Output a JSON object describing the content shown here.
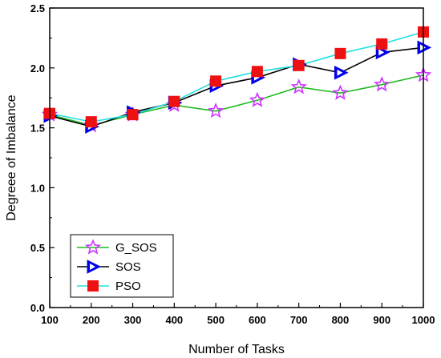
{
  "chart_data": {
    "type": "line",
    "xlabel": "Number of Tasks",
    "ylabel": "Degreee of Imbalance",
    "xlim": [
      100,
      1000
    ],
    "ylim": [
      0.0,
      2.5
    ],
    "x": [
      100,
      200,
      300,
      400,
      500,
      600,
      700,
      800,
      900,
      1000
    ],
    "x_ticks": [
      "100",
      "200",
      "300",
      "400",
      "500",
      "600",
      "700",
      "800",
      "900",
      "1000"
    ],
    "y_ticks": [
      "0.0",
      "0.5",
      "1.0",
      "1.5",
      "2.0",
      "2.5"
    ],
    "legend_position": "bottom-left",
    "grid": false,
    "series": [
      {
        "name": "G_SOS",
        "line_color": "#22bb22",
        "marker": "star",
        "marker_color": "#cc33ff",
        "values": [
          1.61,
          1.52,
          1.61,
          1.69,
          1.64,
          1.73,
          1.84,
          1.79,
          1.86,
          1.94
        ]
      },
      {
        "name": "SOS",
        "line_color": "#000000",
        "marker": "triangle-right",
        "marker_color": "#0000ee",
        "values": [
          1.6,
          1.51,
          1.63,
          1.71,
          1.85,
          1.92,
          2.03,
          1.96,
          2.13,
          2.17
        ]
      },
      {
        "name": "PSO",
        "line_color": "#22e0e0",
        "marker": "square",
        "marker_color": "#ee1111",
        "values": [
          1.62,
          1.55,
          1.61,
          1.72,
          1.89,
          1.97,
          2.02,
          2.12,
          2.2,
          2.3
        ]
      }
    ]
  }
}
